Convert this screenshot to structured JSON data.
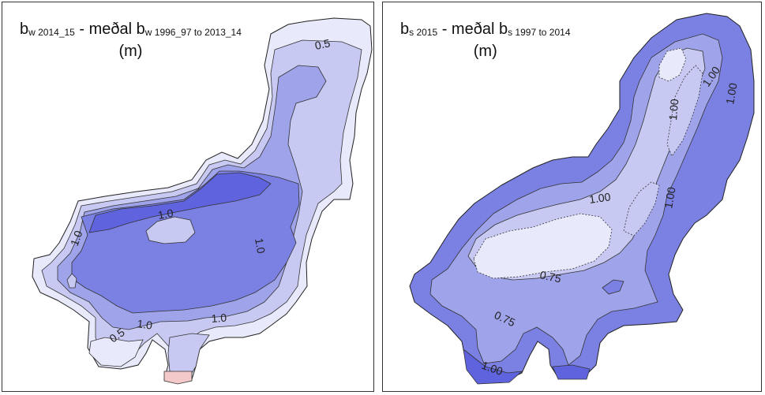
{
  "left_map": {
    "title_var": "b",
    "title_var_sub": "w 2014_15",
    "title_sep": "-  meðal b",
    "title_ref_sub": "w 1996_97 to 2013_14",
    "unit": "(m)",
    "labels": [
      "0.5",
      "1.0",
      "1.0",
      "1.0",
      "1.0",
      "1.0",
      "0.5"
    ]
  },
  "right_map": {
    "title_var": "b",
    "title_var_sub": "s 2015",
    "title_sep": "-  meðal b",
    "title_ref_sub": "s 1997 to 2014",
    "unit": "(m)",
    "labels": [
      "1.00",
      "1.00",
      "1.00",
      "1.00",
      "1.00",
      "0.75",
      "0.75",
      "1.00"
    ]
  },
  "colors": {
    "lightest": "#e8e9fb",
    "light": "#c7c9f2",
    "medium": "#9fa3ea",
    "dark": "#7b80e3",
    "darkest": "#5f63dd",
    "negative": "#f4c9c9"
  }
}
